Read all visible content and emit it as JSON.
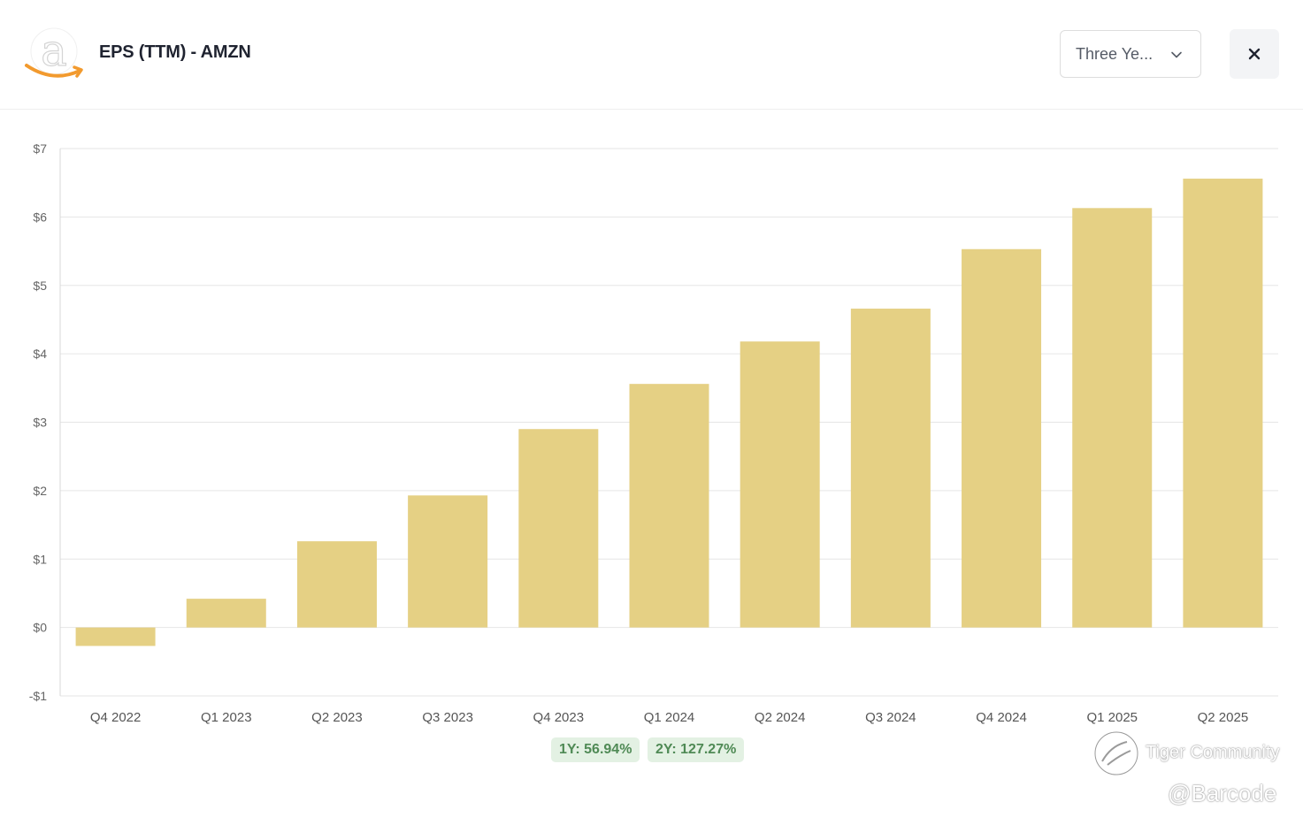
{
  "header": {
    "title": "EPS (TTM) - AMZN",
    "logo_icon": "amazon-logo-icon",
    "period_select": {
      "value": "Three Ye...",
      "icon": "chevron-down-icon"
    },
    "close_icon": "close-icon"
  },
  "chart_data": {
    "type": "bar",
    "categories": [
      "Q4 2022",
      "Q1 2023",
      "Q2 2023",
      "Q3 2023",
      "Q4 2023",
      "Q1 2024",
      "Q2 2024",
      "Q3 2024",
      "Q4 2024",
      "Q1 2025",
      "Q2 2025"
    ],
    "values": [
      -0.27,
      0.42,
      1.26,
      1.93,
      2.9,
      3.56,
      4.18,
      4.66,
      5.53,
      6.13,
      6.56
    ],
    "yticks": [
      7,
      6,
      5,
      4,
      3,
      2,
      1,
      0,
      -1
    ],
    "ytick_labels": [
      "$7",
      "$6",
      "$5",
      "$4",
      "$3",
      "$2",
      "$1",
      "$0",
      "-$1"
    ],
    "ylim": [
      -1,
      7
    ],
    "bar_color": "#e5d084",
    "grid": true,
    "title": "",
    "xlabel": "",
    "ylabel": ""
  },
  "badges": [
    {
      "label": "1Y: 56.94%"
    },
    {
      "label": "2Y: 127.27%"
    }
  ],
  "watermark": {
    "brand": "Tiger Community",
    "handle": "@Barcode",
    "icon": "tiger-community-logo-icon"
  }
}
